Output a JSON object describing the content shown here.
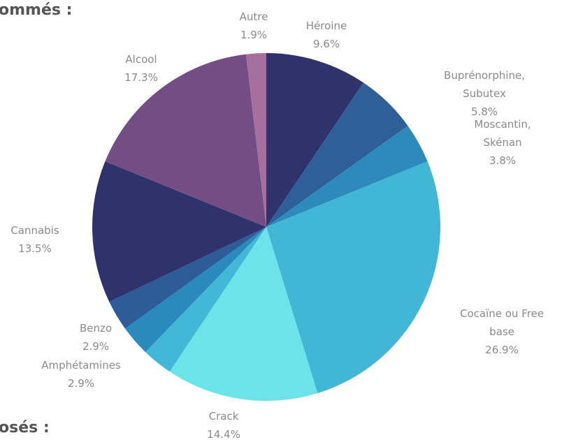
{
  "headings": {
    "top": "ommés :",
    "bottom": "osés :"
  },
  "chart_data": {
    "type": "pie",
    "start_angle_deg": 0,
    "direction": "clockwise",
    "slices": [
      {
        "name_lines": [
          "Héroine"
        ],
        "value_label": "9.6%",
        "value": 9.6,
        "color": "#30336b"
      },
      {
        "name_lines": [
          "Buprénorphine,",
          "Subutex"
        ],
        "value_label": "5.8%",
        "value": 5.8,
        "color": "#2e5f98"
      },
      {
        "name_lines": [
          "Moscantin,",
          "Skénan"
        ],
        "value_label": "3.8%",
        "value": 3.8,
        "color": "#2c8bbb"
      },
      {
        "name_lines": [
          "Cocaïne ou Free",
          "base"
        ],
        "value_label": "26.9%",
        "value": 26.9,
        "color": "#41b6d5"
      },
      {
        "name_lines": [
          "Crack"
        ],
        "value_label": "14.4%",
        "value": 14.4,
        "color": "#6be3e8"
      },
      {
        "name_lines": [
          "Amphétamines"
        ],
        "value_label": "2.9%",
        "value": 2.9,
        "color": "#42b8d6"
      },
      {
        "name_lines": [
          "Benzo"
        ],
        "value_label": "2.9%",
        "value": 2.9,
        "color": "#2a8abb"
      },
      {
        "name_lines": [
          "Benzo"
        ],
        "value_label": "",
        "value": 2.9,
        "color": "#2e5c98"
      },
      {
        "name_lines": [
          "Cannabis"
        ],
        "value_label": "13.5%",
        "value": 13.5,
        "color": "#30336b"
      },
      {
        "name_lines": [
          "Alcool"
        ],
        "value_label": "17.3%",
        "value": 17.3,
        "color": "#724e84"
      },
      {
        "name_lines": [
          "Autre"
        ],
        "value_label": "1.9%",
        "value": 1.9,
        "color": "#a6709c"
      }
    ]
  }
}
